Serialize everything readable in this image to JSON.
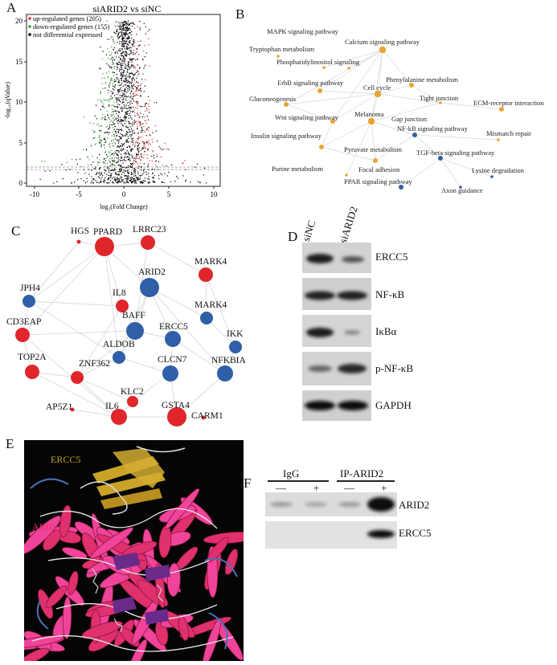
{
  "panels": {
    "A": {
      "letter": "A",
      "title": "siARID2 vs siNC",
      "xlabel": "log₂(Fold Change)",
      "ylabel": "-log₁₀(qValue)",
      "legend": [
        {
          "text": "up-regulated genes (205)",
          "color": "#e03030"
        },
        {
          "text": "down-regulated genes (155)",
          "color": "#2ca02c"
        },
        {
          "text": "not  differential expressed",
          "color": "#000000"
        }
      ],
      "x_ticks": [
        "-10",
        "-5",
        "0",
        "5",
        "10"
      ],
      "y_ticks": [
        "0",
        "5",
        "10",
        "15",
        "20"
      ]
    },
    "B": {
      "letter": "B",
      "nodes": [
        "MAPK signaling pathway",
        "Calcium signaling pathway",
        "Tryptophan metabolism",
        "Phosphatidylinositol signaling",
        "Phenylalanine metabolism",
        "ErbB signaling pathway",
        "Cell cycle",
        "Tight junction",
        "ECM-receptor interaction",
        "Gluconeogenesis",
        "Melanoma",
        "Gap junction",
        "Wnt signaling pathway",
        "NF-kB signaling pathway",
        "Mismatch repair",
        "Insulin signaling pathway",
        "Pyruvate metabolism",
        "TGF-beta signaling pathway",
        "Purine metabolism",
        "Focal adhesion",
        "Lysine degradation",
        "PPAR signaling pathway",
        "Axon guidance"
      ]
    },
    "C": {
      "letter": "C",
      "nodes": [
        "HGS",
        "LRRC23",
        "PPARD",
        "MARK4",
        "JPH4",
        "ARID2",
        "IL8",
        "CD3EAP",
        "MARK4",
        "BAFF",
        "IKK",
        "ERCC5",
        "ALDOB",
        "TOP2A",
        "NFKBIA",
        "ZNF362",
        "CLCN7",
        "KLC2",
        "AP5Z1",
        "IL6",
        "GSTA4",
        "CARM1"
      ]
    },
    "D": {
      "letter": "D",
      "lanes": [
        "siNC",
        "siARID2"
      ],
      "bands": [
        "ERCC5",
        "NF-κB",
        "IκBα",
        "p-NF-κB",
        "GAPDH"
      ]
    },
    "E": {
      "letter": "E",
      "labels": [
        "ERCC5",
        "ARID2"
      ],
      "colors": {
        "ercc5": "#c9a227",
        "arid2": "#e0306e"
      }
    },
    "F": {
      "letter": "F",
      "groups": [
        "IgG",
        "IP-ARID2"
      ],
      "signs": [
        "—",
        "+",
        "—",
        "+"
      ],
      "bands": [
        "ARID2",
        "ERCC5"
      ]
    }
  }
}
